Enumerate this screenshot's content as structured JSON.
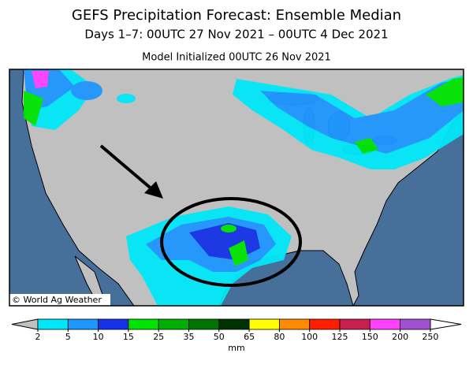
{
  "header": {
    "title": "GEFS Precipitation Forecast: Ensemble Median",
    "subtitle": "Days 1–7: 00UTC 27 Nov 2021 – 00UTC 4 Dec 2021",
    "initialized": "Model Initialized 00UTC 26 Nov 2021"
  },
  "map": {
    "credit": "© World Ag Weather"
  },
  "colorbar": {
    "ticks": [
      2,
      5,
      10,
      15,
      25,
      35,
      50,
      65,
      80,
      100,
      125,
      150,
      200,
      250
    ],
    "colors": [
      "#00e8f8",
      "#1e96ff",
      "#1432e6",
      "#00e400",
      "#00b000",
      "#007400",
      "#003200",
      "#ffff00",
      "#ff8c00",
      "#ff1e00",
      "#c81e50",
      "#ff40ff",
      "#a050d0"
    ],
    "under_color": "#c0c0c0",
    "over_color": "#ffffff",
    "unit": "mm"
  }
}
